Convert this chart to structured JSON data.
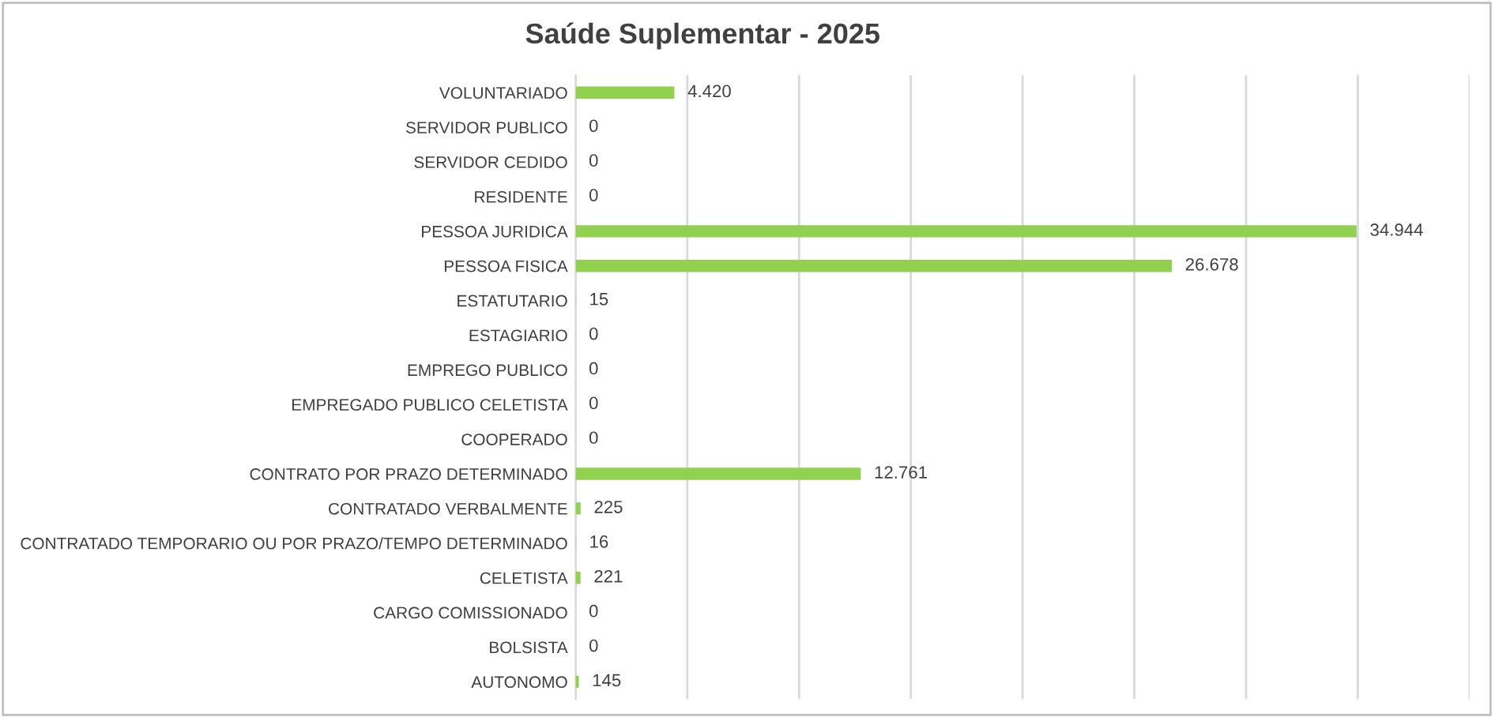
{
  "chart_data": {
    "type": "bar",
    "orientation": "horizontal",
    "title": "Saúde Suplementar - 2025",
    "categories": [
      "VOLUNTARIADO",
      "SERVIDOR PUBLICO",
      "SERVIDOR CEDIDO",
      "RESIDENTE",
      "PESSOA JURIDICA",
      "PESSOA FISICA",
      "ESTATUTARIO",
      "ESTAGIARIO",
      "EMPREGO PUBLICO",
      "EMPREGADO PUBLICO CELETISTA",
      "COOPERADO",
      "CONTRATO POR PRAZO DETERMINADO",
      "CONTRATADO VERBALMENTE",
      "CONTRATADO TEMPORARIO OU POR PRAZO/TEMPO DETERMINADO",
      "CELETISTA",
      "CARGO COMISSIONADO",
      "BOLSISTA",
      "AUTONOMO"
    ],
    "values": [
      4420,
      0,
      0,
      0,
      34944,
      26678,
      15,
      0,
      0,
      0,
      0,
      12761,
      225,
      16,
      221,
      0,
      0,
      145
    ],
    "value_labels": [
      "4.420",
      "0",
      "0",
      "0",
      "34.944",
      "26.678",
      "15",
      "0",
      "0",
      "0",
      "0",
      "12.761",
      "225",
      "16",
      "221",
      "0",
      "0",
      "145"
    ],
    "color": "#92d050",
    "xlim": [
      0,
      40000
    ],
    "xticks": [
      {
        "value": 0,
        "label": null
      },
      {
        "value": 5000,
        "label": null
      },
      {
        "value": 10000,
        "label": null
      },
      {
        "value": 15000,
        "label": null
      },
      {
        "value": 20000,
        "label": null
      },
      {
        "value": 25000,
        "label": null
      },
      {
        "value": 30000,
        "label": null
      },
      {
        "value": 35000,
        "label": null
      },
      {
        "value": 40000,
        "label": null
      }
    ],
    "grid": "x",
    "tick_labels": "y"
  }
}
